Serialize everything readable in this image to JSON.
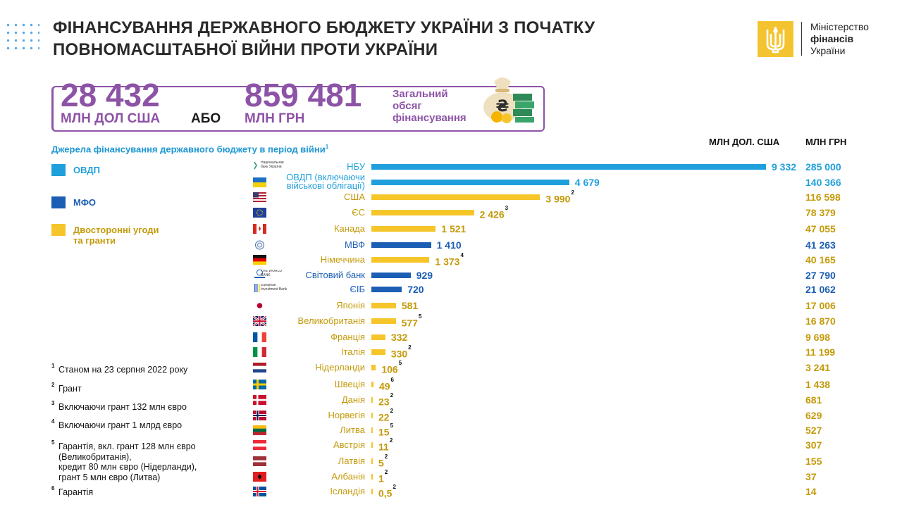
{
  "title_line1": "ФІНАНСУВАННЯ ДЕРЖАВНОГО БЮДЖЕТУ УКРАЇНИ З ПОЧАТКУ",
  "title_line2": "ПОВНОМАСШТАБНОЇ ВІЙНИ ПРОТИ УКРАЇНИ",
  "logo": {
    "line1": "Міністерство",
    "line2": "фінансів",
    "line3": "України"
  },
  "totals": {
    "usd_value": "28 432",
    "usd_unit": "МЛН ДОЛ США",
    "or": "АБО",
    "uah_value": "859 481",
    "uah_unit": "МЛН ГРН",
    "label": "Загальний обсяг фінансування"
  },
  "colors": {
    "ovdp": "#1fa0dc",
    "mfo": "#1b5eb3",
    "bilateral": "#f5c52a",
    "purple": "#8d53a6",
    "grn_bilateral": "#c49a0a"
  },
  "legend": [
    {
      "key": "ovdp",
      "label1": "ОВДП",
      "label2": ""
    },
    {
      "key": "mfo",
      "label1": "МФО",
      "label2": ""
    },
    {
      "key": "bilateral",
      "label1": "Двосторонні угоди",
      "label2": "та гранти"
    }
  ],
  "footnotes": [
    {
      "n": "1",
      "lines": [
        "Станом на 23 серпня 2022 року"
      ]
    },
    {
      "n": "2",
      "lines": [
        "Грант"
      ]
    },
    {
      "n": "3",
      "lines": [
        "Включаючи грант 132 млн євро"
      ]
    },
    {
      "n": "4",
      "lines": [
        "Включаючи грант 1 млрд євро"
      ]
    },
    {
      "n": "5",
      "lines": [
        "Гарантія, вкл. грант 128 млн євро",
        "(Великобританія),",
        "кредит 80 млн  євро (Нідерланди),",
        "грант 5 млн євро (Литва)"
      ]
    },
    {
      "n": "6",
      "lines": [
        "Гарантія"
      ]
    }
  ],
  "chart_data": {
    "type": "bar",
    "orientation": "horizontal",
    "subtitle": "Джерела фінансування державного бюджету в період війни",
    "subtitle_note": "1",
    "col_usd": "МЛН ДОЛ. США",
    "col_uah": "МЛН ГРН",
    "xlim": [
      0,
      9332
    ],
    "grid": false,
    "rows": [
      {
        "label": "НБУ",
        "usd": 9332,
        "usd_text": "9 332",
        "note": "",
        "uah": "285 000",
        "cat": "ovdp",
        "flag": "nbu",
        "flag_text": "Національний банк України"
      },
      {
        "label": "ОВДП (включаючи військові облігації)",
        "label1": "ОВДП (включаючи",
        "label2": "військові облігації)",
        "usd": 4679,
        "usd_text": "4 679",
        "note": "",
        "uah": "140 366",
        "cat": "ovdp",
        "flag": "ua"
      },
      {
        "label": "США",
        "usd": 3990,
        "usd_text": "3 990",
        "note": "2",
        "uah": "116 598",
        "cat": "bilateral",
        "flag": "us"
      },
      {
        "label": "ЄС",
        "usd": 2426,
        "usd_text": "2 426",
        "note": "3",
        "uah": "78 379",
        "cat": "bilateral",
        "flag": "eu"
      },
      {
        "label": "Канада",
        "usd": 1521,
        "usd_text": "1 521",
        "note": "",
        "uah": "47 055",
        "cat": "bilateral",
        "flag": "ca"
      },
      {
        "label": "МВФ",
        "usd": 1410,
        "usd_text": "1 410",
        "note": "",
        "uah": "41 263",
        "cat": "mfo",
        "flag": "imf"
      },
      {
        "label": "Німеччина",
        "usd": 1373,
        "usd_text": "1 373",
        "note": "4",
        "uah": "40 165",
        "cat": "bilateral",
        "flag": "de"
      },
      {
        "label": "Світовий  банк",
        "usd": 929,
        "usd_text": "929",
        "note": "",
        "uah": "27 790",
        "cat": "mfo",
        "flag": "wb",
        "flag_text": "THE WORLD BANK"
      },
      {
        "label": "ЄІБ",
        "usd": 720,
        "usd_text": "720",
        "note": "",
        "uah": "21 062",
        "cat": "mfo",
        "flag": "eib",
        "flag_text": "European Investment Bank"
      },
      {
        "label": "Японія",
        "usd": 581,
        "usd_text": "581",
        "note": "",
        "uah": "17 006",
        "cat": "bilateral",
        "flag": "jp"
      },
      {
        "label": "Великобританія",
        "usd": 577,
        "usd_text": "577",
        "note": "5",
        "uah": "16 870",
        "cat": "bilateral",
        "flag": "gb"
      },
      {
        "label": "Франція",
        "usd": 332,
        "usd_text": "332",
        "note": "",
        "uah": "9 698",
        "cat": "bilateral",
        "flag": "fr"
      },
      {
        "label": "Італія",
        "usd": 330,
        "usd_text": "330",
        "note": "2",
        "uah": "11 199",
        "cat": "bilateral",
        "flag": "it"
      },
      {
        "label": "Нідерланди",
        "usd": 106,
        "usd_text": "106",
        "note": "5",
        "uah": "3 241",
        "cat": "bilateral",
        "flag": "nl"
      },
      {
        "label": "Швеція",
        "usd": 49,
        "usd_text": "49",
        "note": "6",
        "uah": "1 438",
        "cat": "bilateral",
        "flag": "se"
      },
      {
        "label": "Данія",
        "usd": 23,
        "usd_text": "23",
        "note": "2",
        "uah": "681",
        "cat": "bilateral",
        "flag": "dk"
      },
      {
        "label": "Норвегія",
        "usd": 22,
        "usd_text": "22",
        "note": "2",
        "uah": "629",
        "cat": "bilateral",
        "flag": "no"
      },
      {
        "label": "Литва",
        "usd": 15,
        "usd_text": "15",
        "note": "5",
        "uah": "527",
        "cat": "bilateral",
        "flag": "lt"
      },
      {
        "label": "Австрія",
        "usd": 11,
        "usd_text": "11",
        "note": "2",
        "uah": "307",
        "cat": "bilateral",
        "flag": "at"
      },
      {
        "label": "Латвія",
        "usd": 5,
        "usd_text": "5",
        "note": "2",
        "uah": "155",
        "cat": "bilateral",
        "flag": "lv"
      },
      {
        "label": "Албанія",
        "usd": 1,
        "usd_text": "1",
        "note": "2",
        "uah": "37",
        "cat": "bilateral",
        "flag": "al"
      },
      {
        "label": "Ісландія",
        "usd": 0.5,
        "usd_text": "0,5",
        "note": "2",
        "uah": "14",
        "cat": "bilateral",
        "flag": "is"
      }
    ]
  }
}
